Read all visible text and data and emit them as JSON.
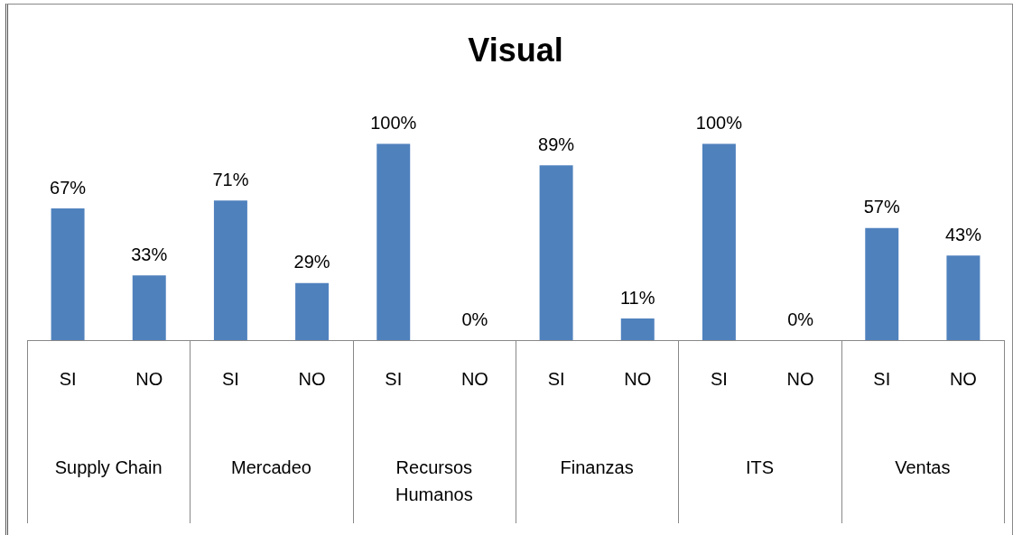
{
  "chart_data": {
    "type": "bar",
    "title": "Visual",
    "categories": [
      "SI",
      "NO",
      "SI",
      "NO",
      "SI",
      "NO",
      "SI",
      "NO",
      "SI",
      "NO",
      "SI",
      "NO"
    ],
    "values": [
      67,
      33,
      71,
      29,
      100,
      0,
      89,
      11,
      100,
      0,
      57,
      43
    ],
    "value_labels": [
      "67%",
      "33%",
      "71%",
      "29%",
      "100%",
      "0%",
      "89%",
      "11%",
      "100%",
      "0%",
      "57%",
      "43%"
    ],
    "color": "#4f81bd",
    "annotations": [
      "Supply Chain",
      "Mercadeo",
      "Recursos Humanos",
      "Finanzas",
      "ITS",
      "Ventas"
    ],
    "grid": false,
    "legend": false
  }
}
